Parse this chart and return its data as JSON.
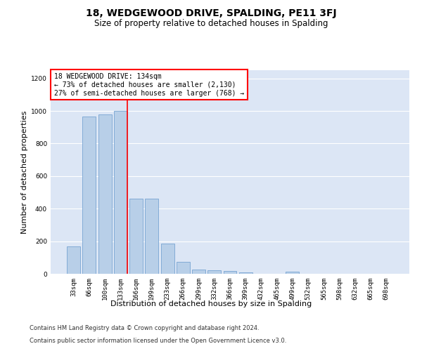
{
  "title": "18, WEDGEWOOD DRIVE, SPALDING, PE11 3FJ",
  "subtitle": "Size of property relative to detached houses in Spalding",
  "xlabel": "Distribution of detached houses by size in Spalding",
  "ylabel": "Number of detached properties",
  "bar_color": "#b8cfe8",
  "bar_edge_color": "#6699cc",
  "background_color": "#dce6f5",
  "grid_color": "white",
  "categories": [
    "33sqm",
    "66sqm",
    "100sqm",
    "133sqm",
    "166sqm",
    "199sqm",
    "233sqm",
    "266sqm",
    "299sqm",
    "332sqm",
    "366sqm",
    "399sqm",
    "432sqm",
    "465sqm",
    "499sqm",
    "532sqm",
    "565sqm",
    "598sqm",
    "632sqm",
    "665sqm",
    "698sqm"
  ],
  "values": [
    170,
    965,
    980,
    1000,
    462,
    462,
    185,
    75,
    27,
    22,
    17,
    10,
    0,
    0,
    14,
    0,
    0,
    0,
    0,
    0,
    0
  ],
  "annotation_text": "18 WEDGEWOOD DRIVE: 134sqm\n← 73% of detached houses are smaller (2,130)\n27% of semi-detached houses are larger (768) →",
  "annotation_box_color": "white",
  "annotation_box_edge_color": "red",
  "vline_color": "red",
  "vline_x_index": 3,
  "ylim": [
    0,
    1250
  ],
  "yticks": [
    0,
    200,
    400,
    600,
    800,
    1000,
    1200
  ],
  "footer_line1": "Contains HM Land Registry data © Crown copyright and database right 2024.",
  "footer_line2": "Contains public sector information licensed under the Open Government Licence v3.0.",
  "title_fontsize": 10,
  "subtitle_fontsize": 8.5,
  "xlabel_fontsize": 8,
  "ylabel_fontsize": 8,
  "tick_fontsize": 6.5,
  "annotation_fontsize": 7,
  "footer_fontsize": 6
}
